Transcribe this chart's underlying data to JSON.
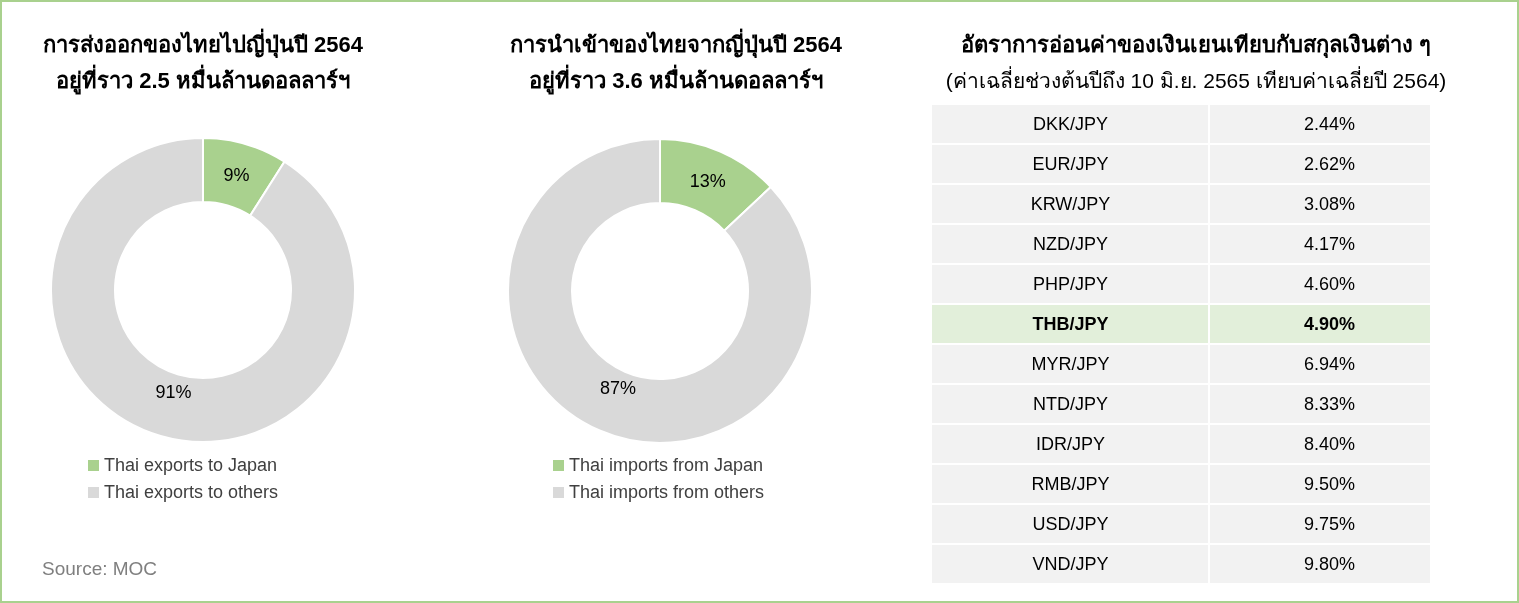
{
  "chart_data": [
    {
      "type": "donut",
      "title": "การส่งออกของไทยไปญี่ปุ่นปี 2564",
      "subtitle": "อยู่ที่ราว 2.5 หมื่นล้านดอลลาร์ฯ",
      "categories": [
        "Thai exports to Japan",
        "Thai exports to others"
      ],
      "values": [
        9,
        91
      ],
      "value_labels": [
        "9%",
        "91%"
      ],
      "colors": [
        "#a9d18e",
        "#d9d9d9"
      ],
      "legend": "bottom",
      "annotations": [
        "Source: MOC"
      ]
    },
    {
      "type": "donut",
      "title": "การนำเข้าของไทยจากญี่ปุ่นปี 2564",
      "subtitle": "อยู่ที่ราว 3.6 หมื่นล้านดอลลาร์ฯ",
      "categories": [
        "Thai imports from Japan",
        "Thai imports from others"
      ],
      "values": [
        13,
        87
      ],
      "value_labels": [
        "13%",
        "87%"
      ],
      "colors": [
        "#a9d18e",
        "#d9d9d9"
      ],
      "legend": "bottom"
    },
    {
      "type": "other",
      "title": "อัตราการอ่อนค่าของเงินเยนเทียบกับสกุลเงินต่าง ๆ",
      "subtitle": "(ค่าเฉลี่ยช่วงต้นปีถึง 10 มิ.ย. 2565 เทียบค่าเฉลี่ยปี 2564)",
      "categories": [
        "DKK/JPY",
        "EUR/JPY",
        "KRW/JPY",
        "NZD/JPY",
        "PHP/JPY",
        "THB/JPY",
        "MYR/JPY",
        "NTD/JPY",
        "IDR/JPY",
        "RMB/JPY",
        "USD/JPY",
        "VND/JPY"
      ],
      "value_labels": [
        "2.44%",
        "2.62%",
        "3.08%",
        "4.17%",
        "4.60%",
        "4.90%",
        "6.94%",
        "8.33%",
        "8.40%",
        "9.50%",
        "9.75%",
        "9.80%"
      ],
      "colors": [
        "#f2f2f2",
        "#f2f2f2",
        "#f2f2f2",
        "#f2f2f2",
        "#f2f2f2",
        "#e2efda",
        "#f2f2f2",
        "#f2f2f2",
        "#f2f2f2",
        "#f2f2f2",
        "#f2f2f2",
        "#f2f2f2"
      ]
    }
  ]
}
